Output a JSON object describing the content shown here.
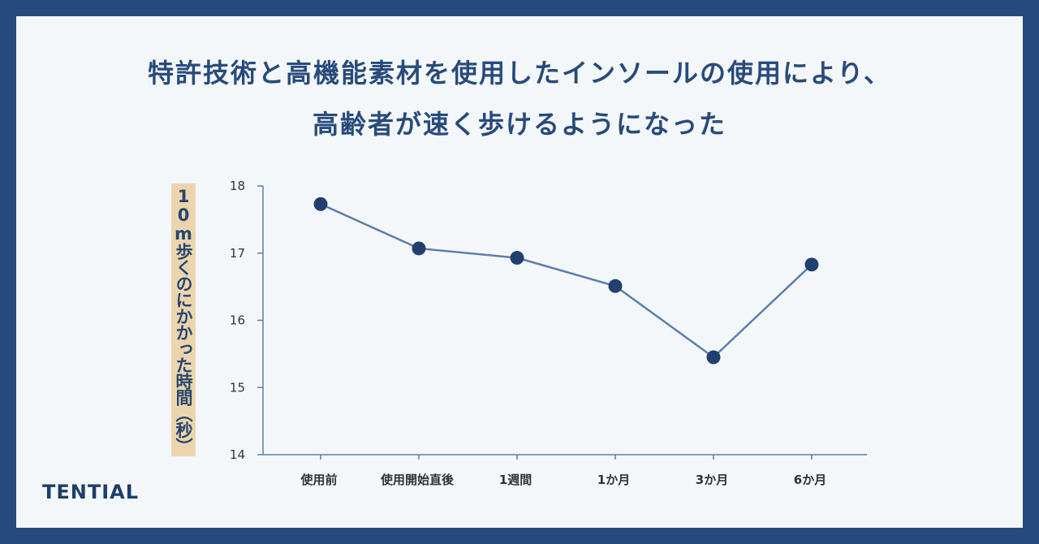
{
  "title_line1": "特許技術と高機能素材を使用したインソールの使用により、",
  "title_line2": "高齢者が速く歩けるようになった",
  "brand": "TENTIAL",
  "colors": {
    "frame": "#264a7e",
    "line": "#5b7fac",
    "marker": "#22406f",
    "ylabel_bg": "#ecd5ae"
  },
  "chart_data": {
    "type": "line",
    "title": "特許技術と高機能素材を使用したインソールの使用により、高齢者が速く歩けるようになった",
    "xlabel": "",
    "ylabel": "10m歩くのにかかった時間（秒）",
    "categories": [
      "使用前",
      "使用開始直後",
      "1週間",
      "1か月",
      "3か月",
      "6か月"
    ],
    "series": [
      {
        "values": [
          17.73,
          17.07,
          16.93,
          16.51,
          15.45,
          16.83
        ]
      }
    ],
    "ylim": [
      14,
      18
    ],
    "yticks": [
      14,
      15,
      16,
      17,
      18
    ],
    "grid": false,
    "legend": "none"
  }
}
